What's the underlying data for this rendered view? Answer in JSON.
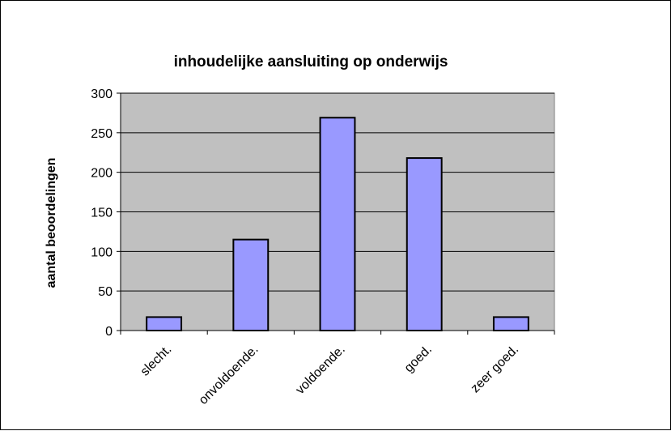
{
  "chart_data": {
    "type": "bar",
    "title": "inhoudelijke aansluiting op onderwijs",
    "xlabel": "",
    "ylabel": "aantal beoordelingen",
    "categories": [
      "slecht.",
      "onvoldoende.",
      "voldoende.",
      "goed.",
      "zeer goed."
    ],
    "values": [
      17,
      115,
      269,
      218,
      17
    ],
    "ylim": [
      0,
      300
    ],
    "yticks": [
      0,
      50,
      100,
      150,
      200,
      250,
      300
    ],
    "grid": true,
    "legend": "none",
    "colors": {
      "plot_background": "#c0c0c0",
      "bar_fill": "#9999ff",
      "bar_stroke": "#000000",
      "grid": "#000000"
    }
  }
}
